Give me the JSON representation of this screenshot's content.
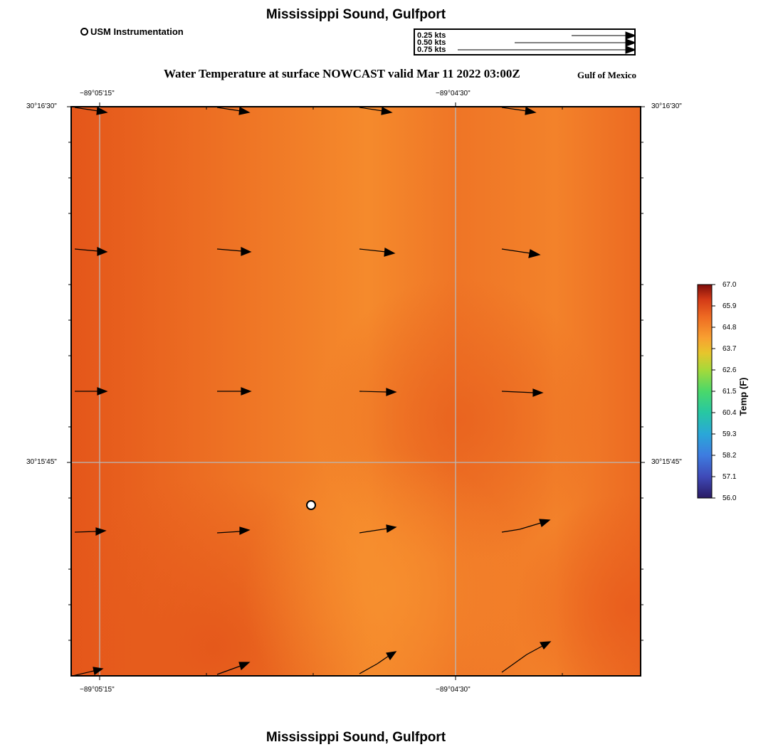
{
  "header": {
    "title": "Mississippi Sound, Gulfport",
    "subtitle": "Water Temperature at surface NOWCAST valid Mar 11 2022 03:00Z",
    "region": "Gulf of Mexico"
  },
  "footer": {
    "title": "Mississippi Sound, Gulfport"
  },
  "legend": {
    "station_label": "USM Instrumentation"
  },
  "vector_scale": {
    "labels": [
      "0.25 kts",
      "0.50 kts",
      "0.75 kts"
    ],
    "speeds_kts": [
      0.25,
      0.5,
      0.75
    ]
  },
  "axes": {
    "lon_labels": [
      "−89°05'15\"",
      "−89°04'30\""
    ],
    "lat_labels": [
      "30°16'30\"",
      "30°15'45\""
    ]
  },
  "colorbar": {
    "title": "Temp (F)",
    "ticks": [
      "67.0",
      "65.9",
      "64.8",
      "63.7",
      "62.6",
      "61.5",
      "60.4",
      "59.3",
      "58.2",
      "57.1",
      "56.0"
    ],
    "min": 56.0,
    "max": 67.0
  },
  "colors": {
    "field_warm": "#e4581a",
    "field_light": "#f48c2c",
    "grid": "#b8b8b8"
  }
}
